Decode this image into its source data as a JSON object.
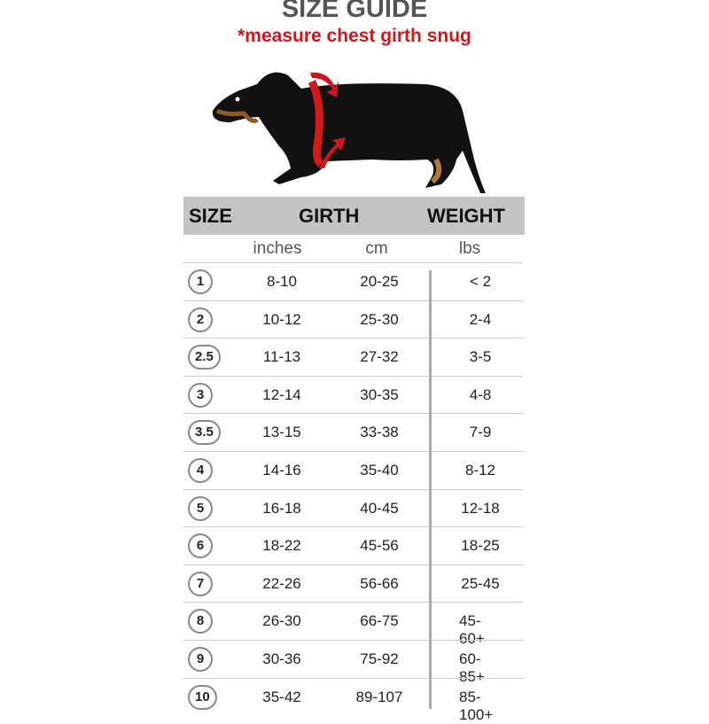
{
  "title": "SIZE GUIDE",
  "subtitle": "*measure chest girth snug",
  "colors": {
    "accent": "#c8191e",
    "header_bg": "#c4c4c4"
  },
  "header": {
    "size": "SIZE",
    "girth": "GIRTH",
    "weight": "WEIGHT"
  },
  "units": {
    "inches": "inches",
    "cm": "cm",
    "lbs": "lbs"
  },
  "rows": [
    {
      "size": "1",
      "inches": "8-10",
      "cm": "20-25",
      "lbs": "< 2"
    },
    {
      "size": "2",
      "inches": "10-12",
      "cm": "25-30",
      "lbs": "2-4"
    },
    {
      "size": "2.5",
      "inches": "11-13",
      "cm": "27-32",
      "lbs": "3-5"
    },
    {
      "size": "3",
      "inches": "12-14",
      "cm": "30-35",
      "lbs": "4-8"
    },
    {
      "size": "3.5",
      "inches": "13-15",
      "cm": "33-38",
      "lbs": "7-9"
    },
    {
      "size": "4",
      "inches": "14-16",
      "cm": "35-40",
      "lbs": "8-12"
    },
    {
      "size": "5",
      "inches": "16-18",
      "cm": "40-45",
      "lbs": "12-18"
    },
    {
      "size": "6",
      "inches": "18-22",
      "cm": "45-56",
      "lbs": "18-25"
    },
    {
      "size": "7",
      "inches": "22-26",
      "cm": "56-66",
      "lbs": "25-45"
    },
    {
      "size": "8",
      "inches": "26-30",
      "cm": "66-75",
      "lbs": "45-60+"
    },
    {
      "size": "9",
      "inches": "30-36",
      "cm": "75-92",
      "lbs": "60-85+"
    },
    {
      "size": "10",
      "inches": "35-42",
      "cm": "89-107",
      "lbs": "85-100+"
    }
  ]
}
